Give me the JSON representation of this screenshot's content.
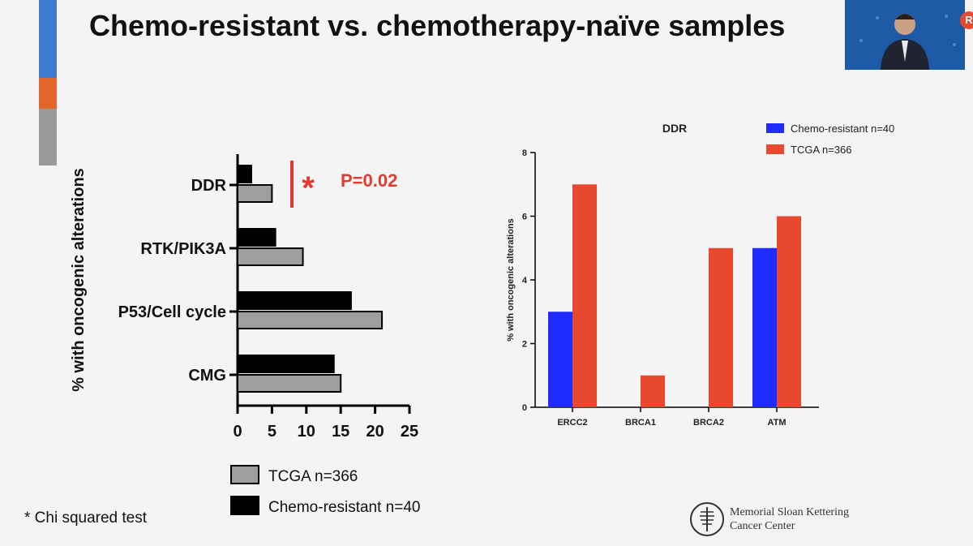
{
  "slide": {
    "title": "Chemo-resistant vs. chemotherapy-naïve samples",
    "footnote": "* Chi squared test",
    "logo_line1": "Memorial Sloan Kettering",
    "logo_line2": "Cancer Center",
    "accent_colors": [
      "#3f7ad0",
      "#e2662a",
      "#9a9a9a"
    ],
    "rec_badge": "R"
  },
  "chart_data": [
    {
      "type": "bar",
      "orientation": "horizontal",
      "title": "",
      "ylabel": "% with oncogenic alterations",
      "xlabel": "",
      "categories": [
        "DDR",
        "RTK/PIK3A",
        "P53/Cell cycle",
        "CMG"
      ],
      "series": [
        {
          "name": "Chemo-resistant n=40",
          "color": "#000000",
          "values": [
            2,
            5.5,
            16.5,
            14
          ]
        },
        {
          "name": "TCGA n=366",
          "color": "#9e9e9e",
          "values": [
            5,
            9.5,
            21,
            15
          ]
        }
      ],
      "xticks": [
        "0",
        "5",
        "10",
        "15",
        "20",
        "25"
      ],
      "xlim": [
        0,
        25
      ],
      "legend": [
        "TCGA n=366",
        "Chemo-resistant n=40"
      ],
      "legend_position": "bottom",
      "annotation": {
        "star": "*",
        "text": "P=0.02",
        "color": "#e03b2c"
      }
    },
    {
      "type": "bar",
      "title": "DDR",
      "ylabel": "% with oncogenic alterations",
      "xlabel": "",
      "categories": [
        "ERCC2",
        "BRCA1",
        "BRCA2",
        "ATM"
      ],
      "series": [
        {
          "name": "Chemo-resistant n=40",
          "color": "#1f2bff",
          "values": [
            3,
            0,
            0,
            5
          ]
        },
        {
          "name": "TCGA n=366",
          "color": "#e8482e",
          "values": [
            7,
            1,
            5,
            6
          ]
        }
      ],
      "yticks": [
        "0",
        "2",
        "4",
        "6",
        "8"
      ],
      "ylim": [
        0,
        8
      ],
      "legend_position": "top-right"
    }
  ]
}
